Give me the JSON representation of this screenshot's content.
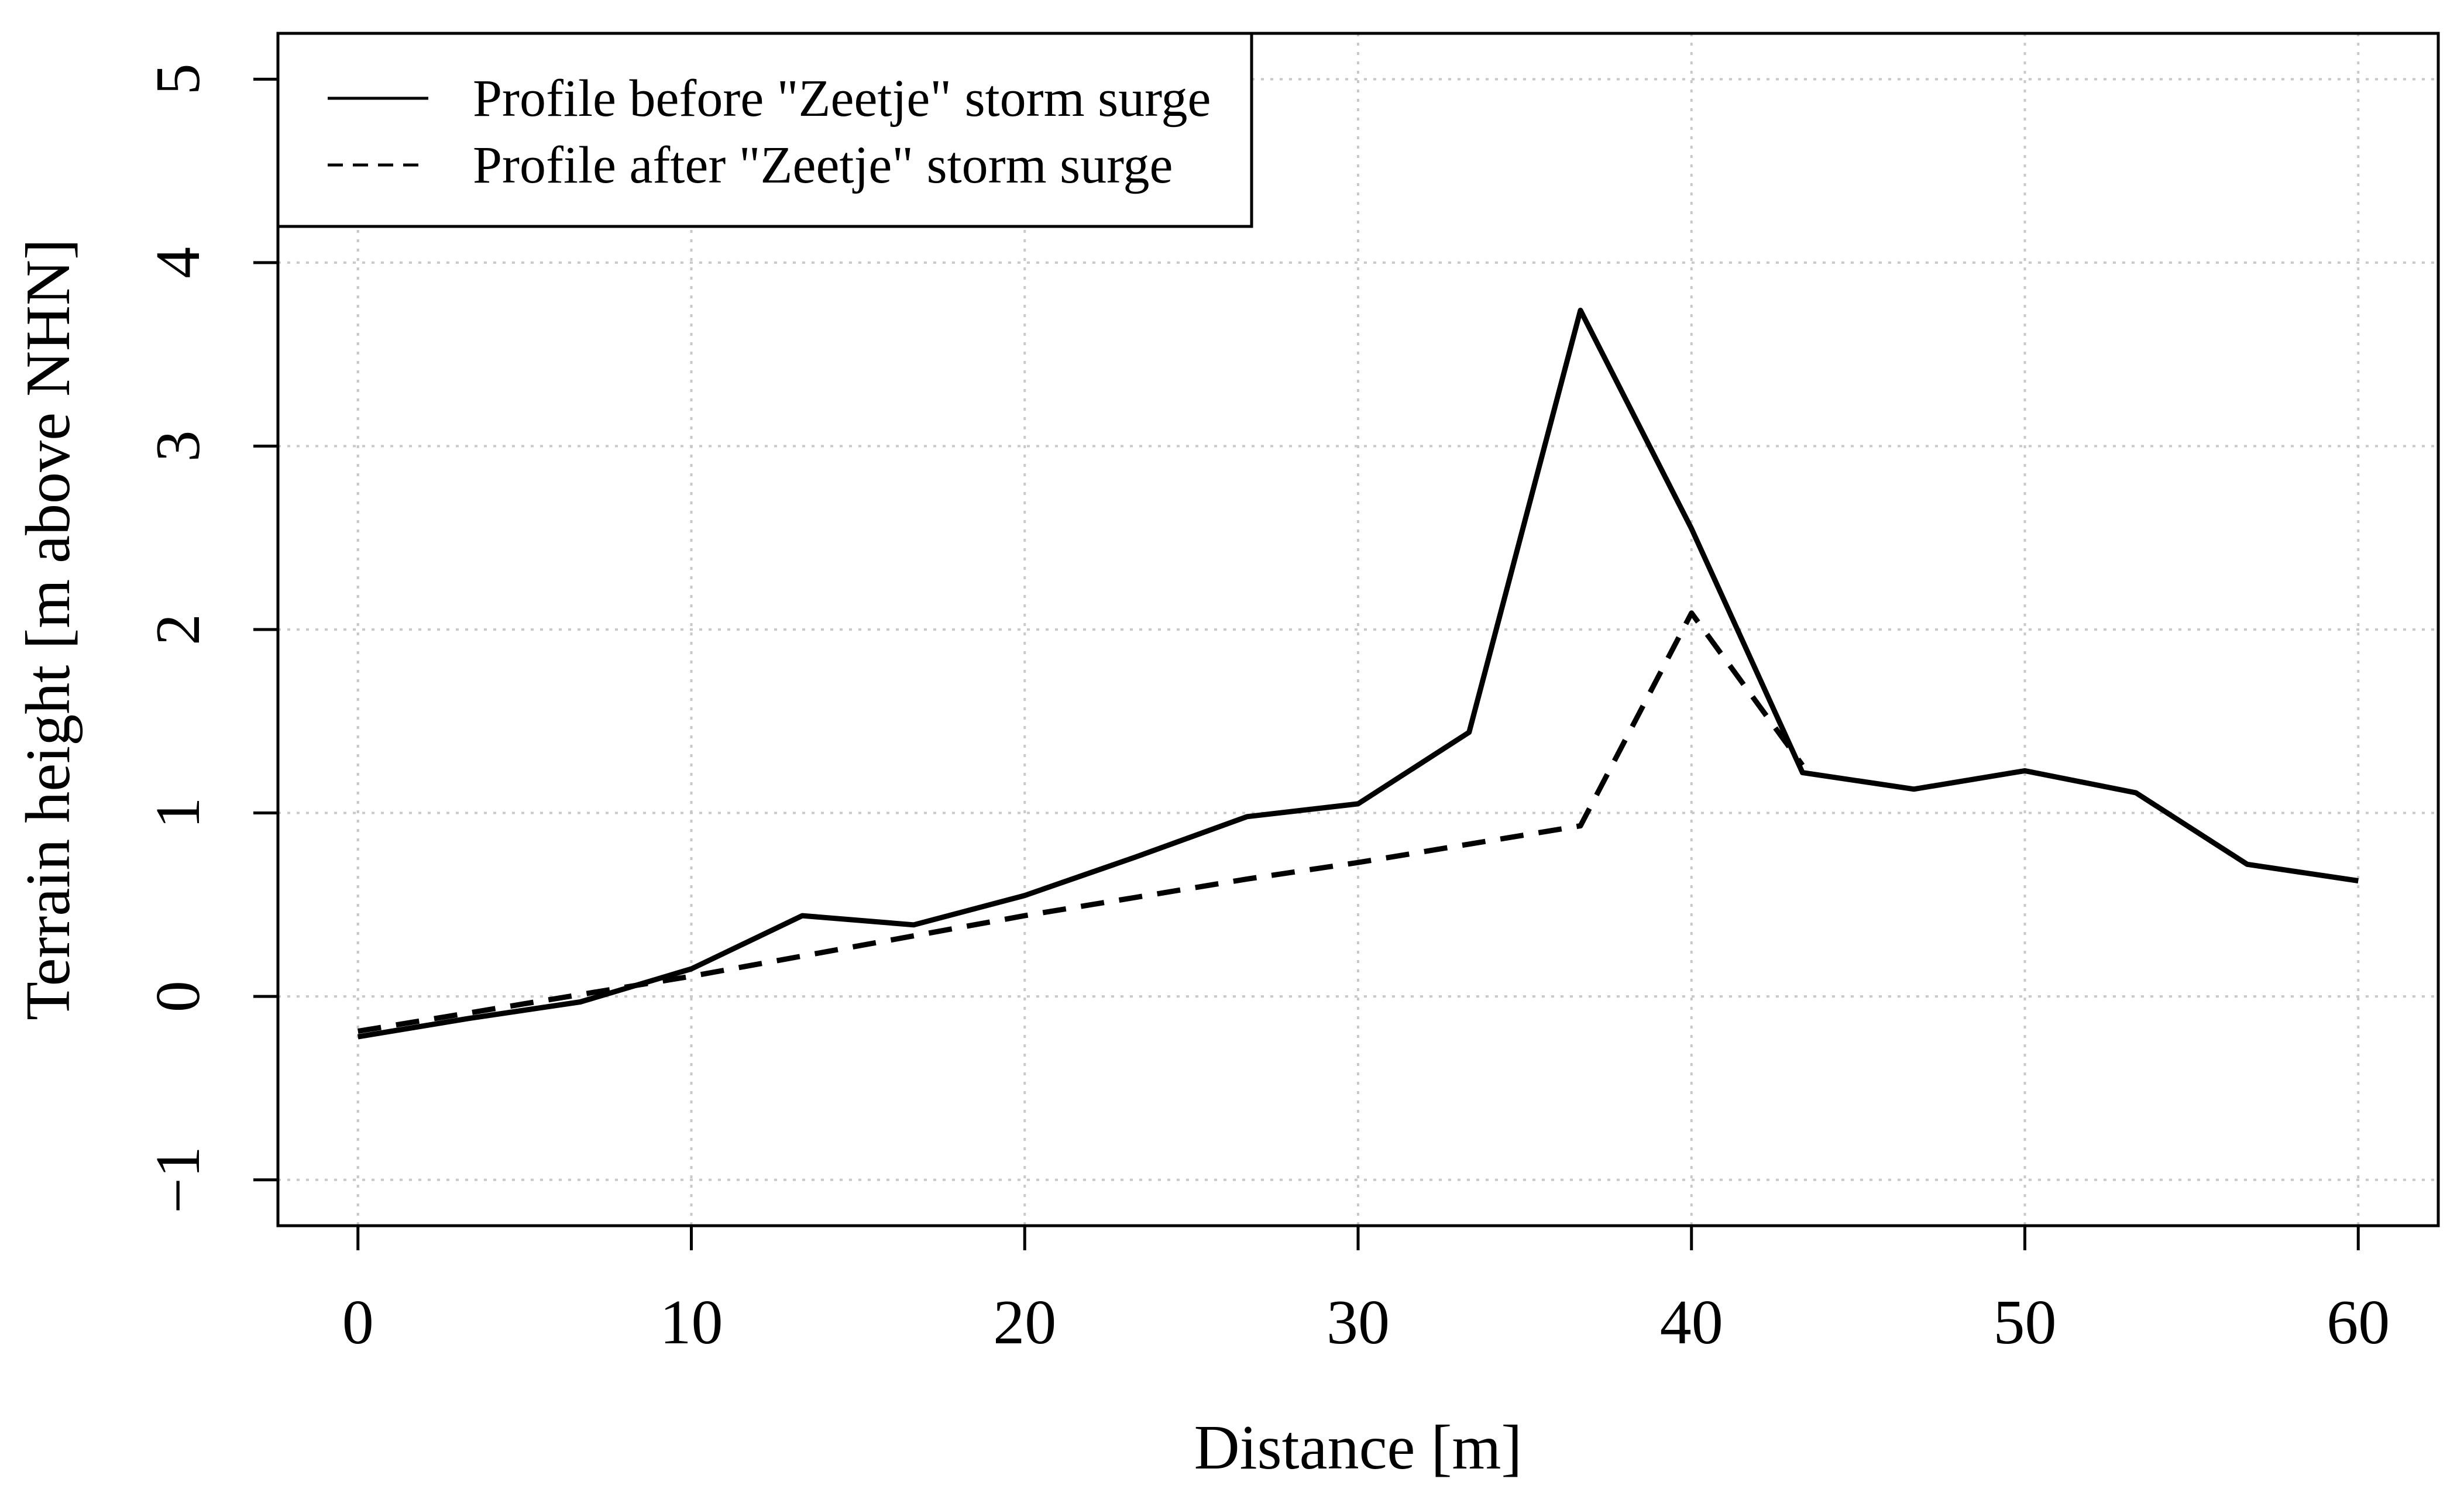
{
  "chart_data": {
    "type": "line",
    "title": "",
    "xlabel": "Distance [m]",
    "ylabel": "Terrain height [m above NHN]",
    "xlim": [
      -2.4,
      62.4
    ],
    "ylim": [
      -1.25,
      5.25
    ],
    "xticks": [
      0,
      10,
      20,
      30,
      40,
      50,
      60
    ],
    "xtick_labels": [
      "0",
      "10",
      "20",
      "30",
      "40",
      "50",
      "60"
    ],
    "yticks": [
      -1,
      0,
      1,
      2,
      3,
      4,
      5
    ],
    "ytick_labels": [
      "−1",
      "0",
      "1",
      "2",
      "3",
      "4",
      "5"
    ],
    "grid": true,
    "legend_position": "top-left",
    "series": [
      {
        "name": "Profile before \"Zeetje\" storm surge",
        "line_style": "solid",
        "x": [
          0,
          3.33,
          6.67,
          10,
          13.33,
          16.67,
          20,
          23.33,
          26.67,
          30,
          33.33,
          36.67,
          40,
          43.33,
          46.67,
          50,
          53.33,
          56.67,
          60
        ],
        "y": [
          -0.22,
          -0.12,
          -0.03,
          0.15,
          0.44,
          0.39,
          0.55,
          0.76,
          0.98,
          1.05,
          1.44,
          3.74,
          2.55,
          1.22,
          1.13,
          1.23,
          1.11,
          0.72,
          0.63
        ]
      },
      {
        "name": "Profile after \"Zeetje\" storm surge",
        "line_style": "dashed",
        "x": [
          0,
          3.33,
          6.67,
          10,
          13.33,
          16.67,
          20,
          23.33,
          26.67,
          30,
          33.33,
          36.67,
          40,
          43.33
        ],
        "y": [
          -0.19,
          -0.09,
          0.01,
          0.11,
          0.22,
          0.33,
          0.44,
          0.54,
          0.64,
          0.73,
          0.83,
          0.93,
          2.09,
          1.26
        ]
      }
    ]
  }
}
